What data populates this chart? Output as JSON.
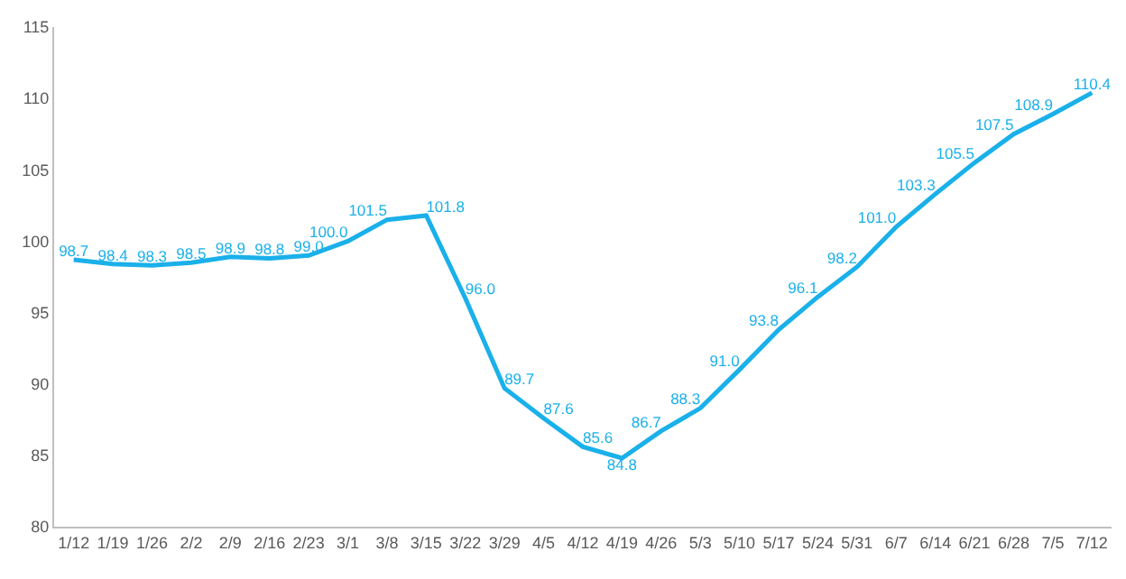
{
  "chart_data": {
    "type": "line",
    "categories": [
      "1/12",
      "1/19",
      "1/26",
      "2/2",
      "2/9",
      "2/16",
      "2/23",
      "3/1",
      "3/8",
      "3/15",
      "3/22",
      "3/29",
      "4/5",
      "4/12",
      "4/19",
      "4/26",
      "5/3",
      "5/10",
      "5/17",
      "5/24",
      "5/31",
      "6/7",
      "6/14",
      "6/21",
      "6/28",
      "7/5",
      "7/12"
    ],
    "series": [
      {
        "color": "#1ab0ea",
        "values": [
          98.7,
          98.4,
          98.3,
          98.5,
          98.9,
          98.8,
          99.0,
          100.0,
          101.5,
          101.8,
          96.0,
          89.7,
          87.6,
          85.6,
          84.8,
          86.7,
          88.3,
          91.0,
          93.8,
          96.1,
          98.2,
          101.0,
          103.3,
          105.5,
          107.5,
          108.9,
          110.4
        ],
        "value_labels": [
          "98.7",
          "98.4",
          "98.3",
          "98.5",
          "98.9",
          "98.8",
          "99.0",
          "100.0",
          "101.5",
          "101.8",
          "96.0",
          "89.7",
          "87.6",
          "85.6",
          "84.8",
          "86.7",
          "88.3",
          "91.0",
          "93.8",
          "96.1",
          "98.2",
          "101.0",
          "103.3",
          "105.5",
          "107.5",
          "108.9",
          "110.4"
        ]
      }
    ],
    "ylim": [
      80,
      115
    ],
    "yticks": [
      80,
      85,
      90,
      95,
      100,
      105,
      110,
      115
    ],
    "data_labels": true,
    "grid": false,
    "legend": false,
    "marker": "none",
    "line_style": "solid"
  }
}
